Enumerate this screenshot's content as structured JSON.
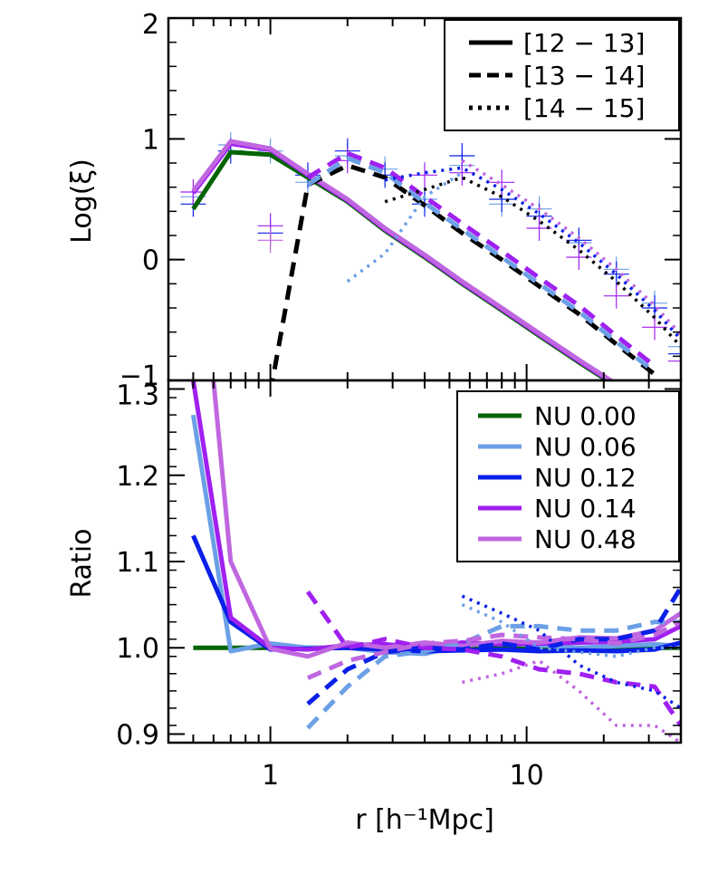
{
  "colors": {
    "NU 0.00": "#006400",
    "NU 0.06": "#6ca0e6",
    "NU 0.12": "#0a1fe8",
    "NU 0.14": "#a020f0",
    "NU 0.48": "#c066e0",
    "mass_ref": "#000000"
  },
  "chart_data": [
    {
      "type": "line",
      "panel": "top",
      "xscale": "log",
      "xlim": [
        0.4,
        40
      ],
      "ylim": [
        -1,
        2
      ],
      "ylabel": "Log(ξ)",
      "yticks": [
        -1,
        0,
        1,
        2
      ],
      "ytick_labels": [
        "−1",
        "0",
        "1",
        "2"
      ],
      "legend": {
        "position": "top-right",
        "entries": [
          {
            "label": "[12 − 13]",
            "linestyle": "solid"
          },
          {
            "label": "[13 − 14]",
            "linestyle": "dashed"
          },
          {
            "label": "[14 − 15]",
            "linestyle": "dotted"
          }
        ]
      },
      "series": [
        {
          "mass_bin": "[12 − 13]",
          "nu": "NU 0.00",
          "linestyle": "solid",
          "x": [
            0.5,
            0.7,
            1.0,
            1.4,
            2.0,
            2.8,
            4.0,
            5.6,
            8.0,
            11.2,
            16,
            22.4,
            31.6,
            40
          ],
          "y": [
            0.42,
            0.89,
            0.87,
            0.68,
            0.48,
            0.24,
            0.02,
            -0.2,
            -0.42,
            -0.63,
            -0.85,
            -1.05,
            -1.25,
            -1.35
          ]
        },
        {
          "mass_bin": "[12 − 13]",
          "nu": "NU 0.14",
          "linestyle": "solid",
          "x": [
            0.5,
            0.7,
            1.0,
            1.4,
            2.0,
            2.8,
            4.0,
            5.6,
            8.0,
            11.2,
            16,
            22.4,
            31.6,
            40
          ],
          "y": [
            0.55,
            0.96,
            0.91,
            0.7,
            0.49,
            0.25,
            0.03,
            -0.19,
            -0.41,
            -0.62,
            -0.84,
            -1.04,
            -1.24,
            -1.34
          ]
        },
        {
          "mass_bin": "[12 − 13]",
          "nu": "NU 0.48",
          "linestyle": "solid",
          "x": [
            0.5,
            0.7,
            1.0,
            1.4,
            2.0,
            2.8,
            4.0,
            5.6,
            8.0,
            11.2,
            16,
            22.4,
            31.6,
            40
          ],
          "y": [
            0.57,
            0.98,
            0.92,
            0.71,
            0.5,
            0.26,
            0.04,
            -0.18,
            -0.4,
            -0.61,
            -0.83,
            -1.03,
            -1.23,
            -1.33
          ]
        },
        {
          "mass_bin": "[13 − 14]",
          "nu": "NU 0.00",
          "linestyle": "dashed",
          "color_key": "mass_ref",
          "x": [
            1.0,
            1.4,
            2.0,
            2.8,
            4.0,
            5.6,
            8.0,
            11.2,
            16,
            22.4,
            31.6
          ],
          "y": [
            -1.1,
            0.62,
            0.78,
            0.68,
            0.45,
            0.22,
            0.0,
            -0.22,
            -0.45,
            -0.7,
            -0.95
          ]
        },
        {
          "mass_bin": "[13 − 14]",
          "nu": "NU 0.06",
          "linestyle": "dashed",
          "x": [
            1.4,
            2.0,
            2.8,
            4.0,
            5.6,
            8.0,
            11.2,
            16,
            22.4,
            31.6
          ],
          "y": [
            0.62,
            0.84,
            0.72,
            0.47,
            0.25,
            0.02,
            -0.2,
            -0.43,
            -0.68,
            -0.93
          ]
        },
        {
          "mass_bin": "[13 − 14]",
          "nu": "NU 0.14",
          "linestyle": "dashed",
          "x": [
            1.4,
            2.0,
            2.8,
            4.0,
            5.6,
            8.0,
            11.2,
            16,
            22.4,
            31.6
          ],
          "y": [
            0.68,
            0.88,
            0.76,
            0.52,
            0.3,
            0.07,
            -0.15,
            -0.38,
            -0.63,
            -0.88
          ]
        },
        {
          "mass_bin": "[14 − 15]",
          "nu": "NU 0.00",
          "linestyle": "dotted",
          "color_key": "mass_ref",
          "x": [
            2.8,
            4.0,
            5.6,
            8.0,
            11.2,
            16,
            22.4,
            31.6,
            40
          ],
          "y": [
            0.48,
            0.58,
            0.68,
            0.52,
            0.32,
            0.08,
            -0.18,
            -0.48,
            -0.72
          ]
        },
        {
          "mass_bin": "[14 − 15]",
          "nu": "NU 0.06",
          "linestyle": "dotted",
          "x": [
            2.0,
            2.8,
            4.0,
            5.6
          ],
          "y": [
            -0.18,
            0.05,
            0.52,
            0.72
          ]
        },
        {
          "mass_bin": "[14 − 15]",
          "nu": "NU 0.12",
          "linestyle": "dotted",
          "x": [
            2.8,
            4.0,
            5.6,
            8.0,
            11.2,
            16,
            22.4,
            31.6,
            40
          ],
          "y": [
            0.66,
            0.72,
            0.76,
            0.58,
            0.38,
            0.14,
            -0.12,
            -0.42,
            -0.66
          ]
        },
        {
          "mass_bin": "[14 − 15]",
          "nu": "NU 0.48",
          "linestyle": "dotted",
          "x": [
            5.6,
            8.0,
            11.2,
            16,
            22.4,
            31.6,
            40
          ],
          "y": [
            0.82,
            0.62,
            0.42,
            0.18,
            -0.08,
            -0.38,
            -0.62
          ]
        }
      ],
      "error_markers": {
        "x": [
          0.5,
          0.7,
          1.0,
          1.4,
          2.0,
          2.8,
          4.0,
          5.6,
          8.0,
          11.2,
          16,
          22.4,
          31.6,
          40
        ],
        "y": [
          [
            0.52,
            0.46,
            0.56
          ],
          [
            0.95,
            0.9
          ],
          [
            0.9,
            0.22,
            0.28,
            0.16
          ],
          [
            0.64,
            0.7
          ],
          [
            0.86,
            0.9,
            0.82
          ],
          [
            0.75,
            0.7
          ],
          [
            0.5,
            0.46,
            0.7
          ],
          [
            0.78,
            0.86,
            0.72
          ],
          [
            0.46,
            0.5,
            0.64
          ],
          [
            0.42,
            0.36,
            0.26
          ],
          [
            0.14,
            0.16,
            0.02
          ],
          [
            -0.08,
            -0.12,
            -0.3
          ],
          [
            -0.36,
            -0.4,
            -0.56
          ],
          [
            -0.72,
            -0.78,
            -0.84
          ]
        ]
      }
    },
    {
      "type": "line",
      "panel": "bottom",
      "xscale": "log",
      "xlim": [
        0.4,
        40
      ],
      "ylim": [
        0.89,
        1.31
      ],
      "xlabel": "r  [h⁻¹Mpc]",
      "ylabel": "Ratio",
      "yticks": [
        0.9,
        1.0,
        1.1,
        1.2,
        1.3
      ],
      "ytick_labels": [
        "0.9",
        "1.0",
        "1.1",
        "1.2",
        "1.3"
      ],
      "xticks": [
        1,
        10
      ],
      "xtick_labels": [
        "1",
        "10"
      ],
      "legend": {
        "position": "top-right",
        "entries": [
          {
            "label": "NU 0.00"
          },
          {
            "label": "NU 0.06"
          },
          {
            "label": "NU 0.12"
          },
          {
            "label": "NU 0.14"
          },
          {
            "label": "NU 0.48"
          }
        ]
      },
      "series": [
        {
          "name": "NU 0.00",
          "linestyle": "solid",
          "x": [
            0.5,
            0.7,
            1.0,
            1.4,
            2.0,
            2.8,
            4.0,
            5.6,
            8.0,
            11.2,
            16,
            22.4,
            31.6,
            40
          ],
          "y": [
            1.0,
            1.0,
            1.0,
            1.0,
            1.0,
            1.0,
            1.0,
            1.0,
            1.0,
            1.0,
            1.0,
            1.0,
            1.0,
            1.0
          ]
        },
        {
          "name": "NU 0.06",
          "linestyle": "solid",
          "x": [
            0.5,
            0.7,
            1.0,
            1.4,
            2.0,
            2.8,
            4.0,
            5.6,
            8.0,
            11.2,
            16,
            22.4,
            31.6,
            40
          ],
          "y": [
            1.27,
            0.996,
            1.005,
            1.0,
            1.0,
            0.995,
            0.993,
            1.003,
            1.005,
            1.003,
            1.0,
            1.002,
            1.004,
            1.002
          ]
        },
        {
          "name": "NU 0.12",
          "linestyle": "solid",
          "x": [
            0.5,
            0.7,
            1.0,
            1.4,
            2.0,
            2.8,
            4.0,
            5.6,
            8.0,
            11.2,
            16,
            22.4,
            31.6,
            40
          ],
          "y": [
            1.13,
            1.03,
            0.998,
            0.999,
            1.0,
            0.998,
            0.996,
            0.997,
            0.998,
            0.996,
            0.997,
            0.996,
            0.998,
            1.006
          ]
        },
        {
          "name": "NU 0.14",
          "linestyle": "solid",
          "x": [
            0.5,
            0.7,
            1.0,
            1.4,
            2.0,
            2.8,
            4.0,
            5.6,
            8.0,
            11.2,
            16,
            22.4,
            31.6,
            40
          ],
          "y": [
            1.31,
            1.035,
            1.0,
            0.998,
            1.003,
            1.004,
            1.0,
            1.006,
            1.004,
            1.005,
            1.006,
            1.007,
            1.01,
            1.025
          ]
        },
        {
          "name": "NU 0.48",
          "linestyle": "solid",
          "x": [
            0.6,
            0.7,
            1.0,
            1.4,
            2.0,
            2.8,
            4.0,
            5.6,
            8.0,
            11.2,
            16,
            22.4,
            31.6,
            40
          ],
          "y": [
            1.31,
            1.1,
            0.999,
            0.99,
            1.006,
            1.0,
            1.006,
            1.002,
            1.008,
            1.006,
            1.012,
            1.011,
            1.02,
            1.04
          ]
        },
        {
          "name": "NU 0.06",
          "linestyle": "dashed",
          "x": [
            1.4,
            2.0,
            2.8,
            4.0,
            5.6,
            8.0,
            11.2,
            16,
            22.4,
            31.6,
            40
          ],
          "y": [
            0.907,
            0.955,
            0.99,
            0.996,
            1.005,
            1.025,
            1.025,
            1.02,
            1.02,
            1.03,
            1.03
          ]
        },
        {
          "name": "NU 0.12",
          "linestyle": "dashed",
          "x": [
            1.4,
            2.0,
            2.8,
            4.0,
            5.6,
            8.0,
            11.2,
            16,
            22.4,
            31.6,
            40
          ],
          "y": [
            0.935,
            0.975,
            0.995,
            1.0,
            0.998,
            1.005,
            0.998,
            1.01,
            1.01,
            1.02,
            1.07
          ]
        },
        {
          "name": "NU 0.14",
          "linestyle": "dashed",
          "x": [
            1.4,
            2.0,
            2.8,
            4.0,
            5.6,
            8.0,
            11.2,
            16,
            22.4,
            31.6,
            40
          ],
          "y": [
            1.065,
            1.0,
            1.01,
            1.0,
            0.998,
            0.99,
            0.975,
            0.97,
            0.96,
            0.955,
            0.91
          ]
        },
        {
          "name": "NU 0.48",
          "linestyle": "dashed",
          "x": [
            1.4,
            2.0,
            2.8,
            4.0,
            5.6,
            8.0,
            11.2,
            16,
            22.4,
            31.6,
            40
          ],
          "y": [
            0.965,
            0.985,
            0.995,
            1.005,
            1.008,
            1.015,
            1.012,
            1.01,
            1.005,
            1.015,
            1.03
          ]
        },
        {
          "name": "NU 0.06",
          "linestyle": "dotted",
          "x": [
            5.6,
            8.0,
            11.2,
            16,
            22.4,
            31.6,
            40
          ],
          "y": [
            1.05,
            1.03,
            1.0,
            0.995,
            0.99,
            1.0,
            1.0
          ]
        },
        {
          "name": "NU 0.12",
          "linestyle": "dotted",
          "x": [
            5.6,
            8.0,
            11.2,
            16,
            22.4,
            31.6,
            40
          ],
          "y": [
            1.06,
            1.04,
            1.02,
            0.98,
            0.96,
            0.95,
            0.93
          ]
        },
        {
          "name": "NU 0.48",
          "linestyle": "dotted",
          "x": [
            5.6,
            8.0,
            11.2,
            16,
            22.4,
            31.6,
            40
          ],
          "y": [
            0.96,
            0.97,
            0.985,
            0.95,
            0.91,
            0.91,
            0.89
          ]
        }
      ]
    }
  ]
}
